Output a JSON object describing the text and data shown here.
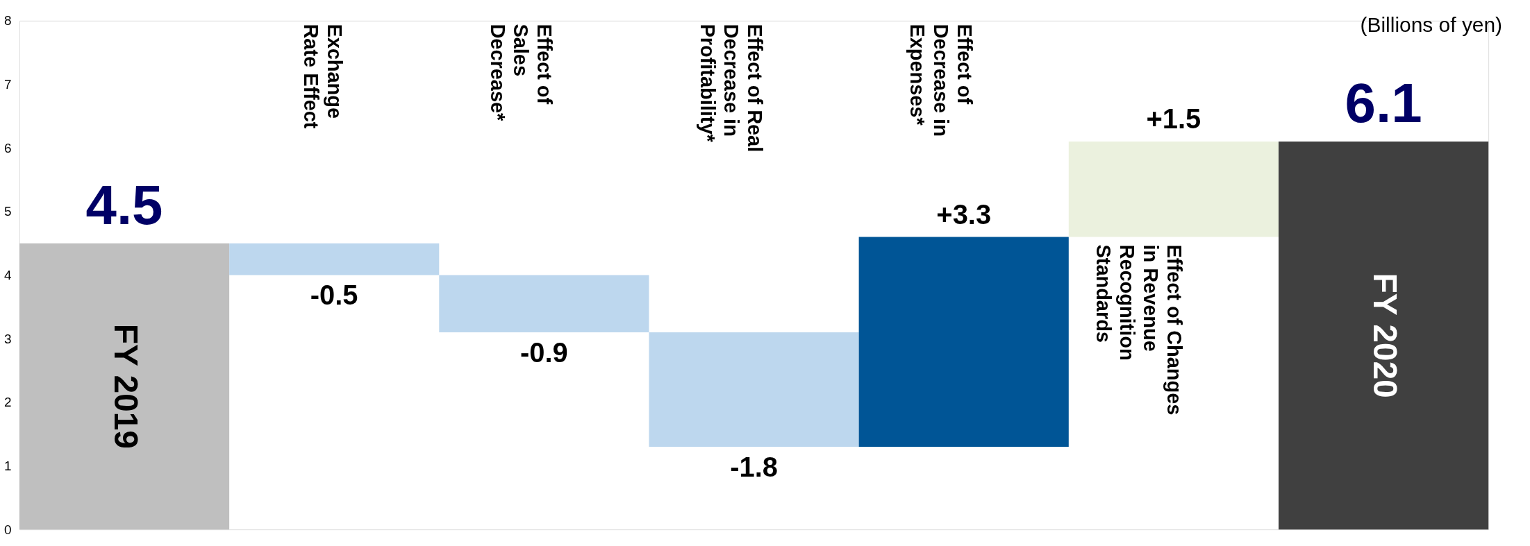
{
  "chart_data": {
    "type": "bar",
    "categories": [
      "FY 2019",
      "Exchange\nRate Effect",
      "Effect of\nSales\nDecrease*",
      "Effect of Real\nDecrease in\nProfitability*",
      "Effect of\nDecrease in\nExpenses*",
      "Effect of Changes\nin Revenue\nRecognition\nStandards",
      "FY 2020"
    ],
    "values": [
      4.5,
      -0.5,
      -0.9,
      -1.8,
      3.3,
      1.5,
      6.1
    ],
    "base": [
      0,
      4.5,
      4.0,
      3.1,
      1.3,
      4.6,
      0
    ],
    "colors": [
      "#bfbfbf",
      "#bdd7ee",
      "#bdd7ee",
      "#bdd7ee",
      "#005596",
      "#ebf1de",
      "#404040"
    ],
    "value_labels": [
      "4.5",
      "-0.5",
      "-0.9",
      "-1.8",
      "+3.3",
      "+1.5",
      "6.1"
    ],
    "ylim": [
      0,
      8
    ],
    "yticks": [
      0,
      1,
      2,
      3,
      4,
      5,
      6,
      7,
      8
    ],
    "grid": false,
    "annotations": [
      "(Billions of yen)"
    ]
  }
}
